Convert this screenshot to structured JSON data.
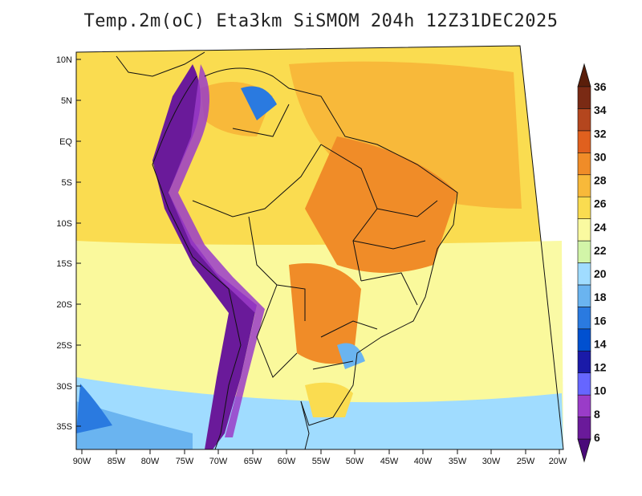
{
  "title": "Temp.2m(oC) Eta3km SiSMOM 204h 12Z31DEC2025",
  "lat_labels": [
    "10N",
    "5N",
    "EQ",
    "5S",
    "10S",
    "15S",
    "20S",
    "25S",
    "30S",
    "35S"
  ],
  "lon_labels": [
    "90W",
    "85W",
    "80W",
    "75W",
    "70W",
    "65W",
    "60W",
    "55W",
    "50W",
    "45W",
    "40W",
    "35W",
    "30W",
    "25W",
    "20W"
  ],
  "colorbar": {
    "labels": [
      "6",
      "8",
      "10",
      "12",
      "14",
      "16",
      "18",
      "20",
      "22",
      "24",
      "26",
      "28",
      "30",
      "32",
      "34",
      "36"
    ],
    "colors": [
      "#6a1a9a",
      "#9a3cc8",
      "#6666ff",
      "#1a1aa8",
      "#0050d0",
      "#2a7ae0",
      "#6ab4f0",
      "#a0dcff",
      "#d2f5a8",
      "#fafaa0",
      "#fadc50",
      "#f8b93a",
      "#f08c28",
      "#e0601e",
      "#b4461e",
      "#7a2a14"
    ]
  },
  "colors": {
    "ocean_north": "#fadc50",
    "ocean_south": "#a0dcff",
    "land_hot": "#f08c28",
    "andes": "#6a1a9a"
  }
}
